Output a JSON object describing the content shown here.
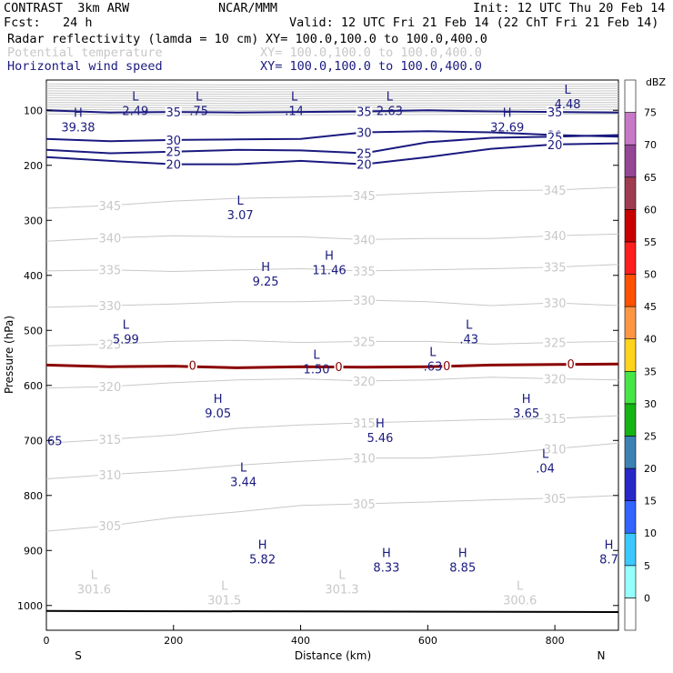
{
  "header": {
    "model": "CONTRAST  3km ARW",
    "center": "NCAR/MMM",
    "init": "Init: 12 UTC Thu 20 Feb 14",
    "fcst": "Fcst:   24 h",
    "valid": "Valid: 12 UTC Fri 21 Feb 14 (22 ChT Fri 21 Feb 14)",
    "fields": [
      {
        "name": "Radar reflectivity (lamda = 10 cm)",
        "xy": "XY= 100.0,100.0 to 100.0,400.0",
        "color": "#000000"
      },
      {
        "name": "Potential temperature",
        "xy": "XY= 100.0,100.0 to 100.0,400.0",
        "color": "#c8c8c8"
      },
      {
        "name": "Horizontal wind speed",
        "xy": "XY= 100.0,100.0 to 100.0,400.0",
        "color": "#1a1a80"
      }
    ]
  },
  "chart_data": {
    "type": "contour",
    "xlabel": "Distance (km)",
    "ylabel": "Pressure (hPa)",
    "xlim": [
      0,
      900
    ],
    "ylim": [
      1045,
      45
    ],
    "x_ticks": [
      0,
      200,
      400,
      600,
      800
    ],
    "y_ticks": [
      100,
      200,
      300,
      400,
      500,
      600,
      700,
      800,
      900,
      1000
    ],
    "left_end_label": "S",
    "right_end_label": "N",
    "colorbar": {
      "unit": "dBZ",
      "levels": [
        "0",
        "5",
        "10",
        "15",
        "20",
        "25",
        "30",
        "35",
        "40",
        "45",
        "50",
        "55",
        "60",
        "65",
        "70",
        "75"
      ],
      "colors": [
        "#ffffff",
        "#96ffff",
        "#3cc8ff",
        "#3264ff",
        "#2828c8",
        "#3c82b4",
        "#14b414",
        "#46e646",
        "#ffd21e",
        "#ff9646",
        "#ff5000",
        "#ff1e1e",
        "#c80000",
        "#a03c50",
        "#964696",
        "#c878c8",
        "#ffffff"
      ]
    },
    "theta_contours": [
      {
        "label": "345",
        "points": [
          [
            0,
            278
          ],
          [
            100,
            273
          ],
          [
            200,
            265
          ],
          [
            300,
            260
          ],
          [
            400,
            258
          ],
          [
            500,
            255
          ],
          [
            600,
            250
          ],
          [
            700,
            246
          ],
          [
            800,
            245
          ],
          [
            900,
            240
          ]
        ]
      },
      {
        "label": "340",
        "points": [
          [
            0,
            338
          ],
          [
            100,
            332
          ],
          [
            200,
            328
          ],
          [
            300,
            330
          ],
          [
            400,
            330
          ],
          [
            500,
            335
          ],
          [
            600,
            333
          ],
          [
            700,
            333
          ],
          [
            800,
            328
          ],
          [
            900,
            325
          ]
        ]
      },
      {
        "label": "335",
        "points": [
          [
            0,
            392
          ],
          [
            100,
            390
          ],
          [
            200,
            393
          ],
          [
            300,
            390
          ],
          [
            400,
            388
          ],
          [
            500,
            392
          ],
          [
            600,
            390
          ],
          [
            700,
            388
          ],
          [
            800,
            385
          ],
          [
            900,
            380
          ]
        ]
      },
      {
        "label": "330",
        "points": [
          [
            0,
            458
          ],
          [
            100,
            455
          ],
          [
            200,
            452
          ],
          [
            300,
            448
          ],
          [
            400,
            448
          ],
          [
            500,
            445
          ],
          [
            600,
            448
          ],
          [
            700,
            455
          ],
          [
            800,
            450
          ],
          [
            900,
            455
          ]
        ]
      },
      {
        "label": "325",
        "points": [
          [
            0,
            528
          ],
          [
            100,
            525
          ],
          [
            200,
            520
          ],
          [
            300,
            518
          ],
          [
            400,
            522
          ],
          [
            500,
            520
          ],
          [
            600,
            520
          ],
          [
            700,
            525
          ],
          [
            800,
            522
          ],
          [
            900,
            520
          ]
        ]
      },
      {
        "label": "320",
        "points": [
          [
            0,
            605
          ],
          [
            100,
            602
          ],
          [
            200,
            595
          ],
          [
            300,
            590
          ],
          [
            400,
            588
          ],
          [
            500,
            592
          ],
          [
            600,
            590
          ],
          [
            700,
            585
          ],
          [
            800,
            588
          ],
          [
            900,
            590
          ]
        ]
      },
      {
        "label": "315",
        "points": [
          [
            0,
            705
          ],
          [
            100,
            698
          ],
          [
            200,
            690
          ],
          [
            300,
            678
          ],
          [
            400,
            672
          ],
          [
            500,
            668
          ],
          [
            600,
            665
          ],
          [
            700,
            662
          ],
          [
            800,
            660
          ],
          [
            900,
            655
          ]
        ]
      },
      {
        "label": "310",
        "points": [
          [
            0,
            770
          ],
          [
            100,
            762
          ],
          [
            200,
            755
          ],
          [
            300,
            745
          ],
          [
            400,
            738
          ],
          [
            500,
            732
          ],
          [
            600,
            732
          ],
          [
            700,
            725
          ],
          [
            800,
            715
          ],
          [
            900,
            705
          ]
        ]
      },
      {
        "label": "305",
        "points": [
          [
            0,
            865
          ],
          [
            100,
            855
          ],
          [
            200,
            840
          ],
          [
            300,
            830
          ],
          [
            400,
            818
          ],
          [
            500,
            815
          ],
          [
            600,
            812
          ],
          [
            700,
            808
          ],
          [
            800,
            805
          ],
          [
            900,
            800
          ]
        ]
      }
    ],
    "wind_contours": [
      {
        "label": "35",
        "points": [
          [
            0,
            100
          ],
          [
            100,
            104
          ],
          [
            200,
            103
          ],
          [
            300,
            104
          ],
          [
            400,
            103
          ],
          [
            500,
            102
          ],
          [
            600,
            100
          ],
          [
            700,
            102
          ],
          [
            800,
            103
          ],
          [
            900,
            104
          ]
        ]
      },
      {
        "label": "30",
        "points": [
          [
            0,
            152
          ],
          [
            100,
            156
          ],
          [
            200,
            154
          ],
          [
            300,
            153
          ],
          [
            400,
            152
          ],
          [
            500,
            140
          ],
          [
            600,
            138
          ],
          [
            700,
            140
          ],
          [
            800,
            145
          ],
          [
            900,
            148
          ]
        ]
      },
      {
        "label": "25",
        "points": [
          [
            0,
            172
          ],
          [
            100,
            178
          ],
          [
            200,
            175
          ],
          [
            300,
            172
          ],
          [
            400,
            173
          ],
          [
            500,
            178
          ],
          [
            600,
            158
          ],
          [
            700,
            150
          ],
          [
            800,
            148
          ],
          [
            900,
            145
          ]
        ]
      },
      {
        "label": "20",
        "points": [
          [
            0,
            185
          ],
          [
            100,
            192
          ],
          [
            200,
            198
          ],
          [
            300,
            198
          ],
          [
            400,
            192
          ],
          [
            500,
            198
          ],
          [
            600,
            185
          ],
          [
            700,
            170
          ],
          [
            800,
            162
          ],
          [
            900,
            160
          ]
        ]
      }
    ],
    "freezing_level": {
      "label": "0",
      "points": [
        [
          0,
          563
        ],
        [
          100,
          566
        ],
        [
          200,
          565
        ],
        [
          300,
          568
        ],
        [
          400,
          566
        ],
        [
          500,
          567
        ],
        [
          600,
          566
        ],
        [
          700,
          563
        ],
        [
          800,
          562
        ],
        [
          900,
          561
        ]
      ]
    },
    "surface": {
      "points": [
        [
          0,
          1010
        ],
        [
          900,
          1012
        ]
      ]
    },
    "extrema": [
      {
        "kind": "L",
        "value": "2.49",
        "x": 140,
        "p": 95,
        "field": "wind"
      },
      {
        "kind": "L",
        "value": ".75",
        "x": 240,
        "p": 95,
        "field": "wind"
      },
      {
        "kind": "L",
        "value": ".14",
        "x": 390,
        "p": 95,
        "field": "wind"
      },
      {
        "kind": "L",
        "value": "2.63",
        "x": 540,
        "p": 95,
        "field": "wind"
      },
      {
        "kind": "L",
        "value": "4.48",
        "x": 820,
        "p": 83,
        "field": "wind"
      },
      {
        "kind": "H",
        "value": "39.38",
        "x": 50,
        "p": 125,
        "field": "wind"
      },
      {
        "kind": "H",
        "value": "32.69",
        "x": 725,
        "p": 125,
        "field": "wind"
      },
      {
        "kind": "L",
        "value": "3.07",
        "x": 305,
        "p": 285,
        "field": "wind"
      },
      {
        "kind": "H",
        "value": "11.46",
        "x": 445,
        "p": 385,
        "field": "wind"
      },
      {
        "kind": "H",
        "value": "9.25",
        "x": 345,
        "p": 405,
        "field": "wind"
      },
      {
        "kind": "L",
        "value": "5.99",
        "x": 125,
        "p": 510,
        "field": "wind"
      },
      {
        "kind": "L",
        "value": ".43",
        "x": 665,
        "p": 510,
        "field": "wind"
      },
      {
        "kind": "L",
        "value": "1.50",
        "x": 425,
        "p": 565,
        "field": "wind"
      },
      {
        "kind": "L",
        "value": ".63",
        "x": 608,
        "p": 560,
        "field": "wind"
      },
      {
        "kind": "H",
        "value": "9.05",
        "x": 270,
        "p": 645,
        "field": "wind"
      },
      {
        "kind": "H",
        "value": "3.65",
        "x": 755,
        "p": 645,
        "field": "wind"
      },
      {
        "kind": "H",
        "value": "5.46",
        "x": 525,
        "p": 690,
        "field": "wind"
      },
      {
        "kind": "L",
        "value": ".04",
        "x": 785,
        "p": 745,
        "field": "wind"
      },
      {
        "kind": "L",
        "value": "3.44",
        "x": 310,
        "p": 770,
        "field": "wind"
      },
      {
        "kind": "H",
        "value": "5.82",
        "x": 340,
        "p": 910,
        "field": "wind"
      },
      {
        "kind": "H",
        "value": "8.33",
        "x": 535,
        "p": 925,
        "field": "wind"
      },
      {
        "kind": "H",
        "value": "8.85",
        "x": 655,
        "p": 925,
        "field": "wind"
      },
      {
        "kind": "H",
        "value": "8.7",
        "x": 885,
        "p": 910,
        "field": "wind"
      },
      {
        "kind": "L",
        "value": "301.6",
        "x": 75,
        "p": 965,
        "field": "theta"
      },
      {
        "kind": "L",
        "value": "301.5",
        "x": 280,
        "p": 985,
        "field": "theta"
      },
      {
        "kind": "L",
        "value": "301.3",
        "x": 465,
        "p": 965,
        "field": "theta"
      },
      {
        "kind": "L",
        "value": "300.6",
        "x": 745,
        "p": 985,
        "field": "theta"
      }
    ],
    "edge_labels": [
      {
        "value": "65",
        "x": 0,
        "p": 700
      }
    ],
    "colors": {
      "theta": "#c8c8c8",
      "wind": "#1a1a80",
      "freezing": "#8b0000",
      "surface": "#000000"
    }
  }
}
